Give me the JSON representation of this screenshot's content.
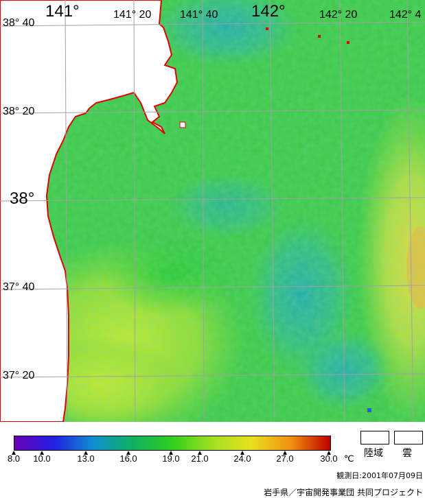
{
  "map": {
    "lon_labels": [
      {
        "text": "141°",
        "size": "big"
      },
      {
        "text": "141° 20",
        "size": "small"
      },
      {
        "text": "141° 40",
        "size": "small"
      },
      {
        "text": "142°",
        "size": "big"
      },
      {
        "text": "142° 20",
        "size": "small"
      },
      {
        "text": "142° 4",
        "size": "small"
      }
    ],
    "lat_labels": [
      {
        "text": "38° 40",
        "size": "small"
      },
      {
        "text": "38° 20",
        "size": "small"
      },
      {
        "text": "38°",
        "size": "big"
      },
      {
        "text": "37° 40",
        "size": "small"
      },
      {
        "text": "37° 20",
        "size": "small"
      }
    ],
    "colors": {
      "land": "#ffffff",
      "coast": "#e00000",
      "grid": "#a0a0a8"
    }
  },
  "legend": {
    "ticks": [
      "8.0",
      "10.0",
      "13.0",
      "16.0",
      "19.0",
      "21.0",
      "24.0",
      "27.0",
      "30.0"
    ],
    "unit": "℃",
    "land_label": "陸域",
    "cloud_label": "雲",
    "gradient": [
      "#6a00b8",
      "#2020e0",
      "#1090d0",
      "#10b060",
      "#30d020",
      "#a0e020",
      "#e8e020",
      "#f09010",
      "#c00000"
    ]
  },
  "observation_date": "観測日:2001年07月09日",
  "credit": "岩手県／宇宙開発事業団 共同プロジェクト"
}
